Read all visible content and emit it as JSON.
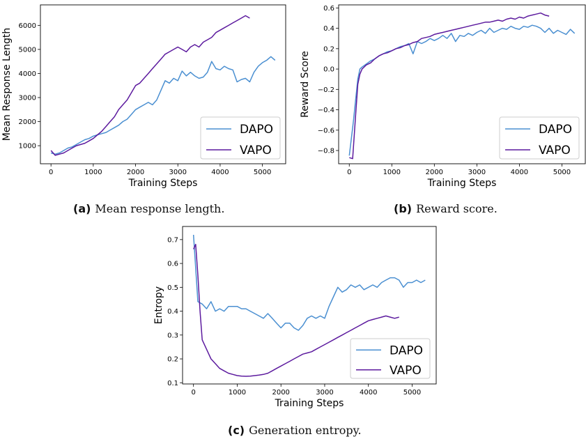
{
  "colors": {
    "dapo": "#4a8fd1",
    "vapo": "#5c1a9e"
  },
  "captions": [
    {
      "label": "(a)",
      "text": "Mean response length."
    },
    {
      "label": "(b)",
      "text": "Reward score."
    },
    {
      "label": "(c)",
      "text": "Generation entropy."
    }
  ],
  "chart_data": [
    {
      "id": "a",
      "type": "line",
      "xlabel": "Training Steps",
      "ylabel": "Mean Response Length",
      "xlim": [
        -250,
        5550
      ],
      "ylim": [
        250,
        6850
      ],
      "xticks": [
        0,
        1000,
        2000,
        3000,
        4000,
        5000
      ],
      "yticks": [
        1000,
        2000,
        3000,
        4000,
        5000,
        6000
      ],
      "legend": {
        "position": "bottom-right",
        "entries": [
          "DAPO",
          "VAPO"
        ]
      },
      "series": [
        {
          "name": "DAPO",
          "x": [
            0,
            100,
            200,
            300,
            400,
            500,
            600,
            700,
            800,
            900,
            1000,
            1100,
            1200,
            1300,
            1400,
            1500,
            1600,
            1700,
            1800,
            1900,
            2000,
            2100,
            2200,
            2300,
            2400,
            2500,
            2600,
            2700,
            2800,
            2900,
            3000,
            3100,
            3200,
            3300,
            3400,
            3500,
            3600,
            3700,
            3800,
            3900,
            4000,
            4100,
            4200,
            4300,
            4400,
            4500,
            4600,
            4700,
            4800,
            4900,
            5000,
            5100,
            5200,
            5300
          ],
          "y": [
            700,
            650,
            700,
            800,
            900,
            950,
            1050,
            1150,
            1250,
            1300,
            1400,
            1450,
            1500,
            1550,
            1650,
            1750,
            1850,
            2000,
            2100,
            2300,
            2500,
            2600,
            2700,
            2800,
            2700,
            2900,
            3300,
            3700,
            3600,
            3800,
            3700,
            4100,
            3900,
            4050,
            3900,
            3800,
            3850,
            4050,
            4500,
            4200,
            4150,
            4300,
            4200,
            4150,
            3650,
            3750,
            3800,
            3650,
            4050,
            4300,
            4450,
            4550,
            4700,
            4550
          ]
        },
        {
          "name": "VAPO",
          "x": [
            0,
            100,
            200,
            300,
            400,
            500,
            600,
            700,
            800,
            900,
            1000,
            1100,
            1200,
            1300,
            1400,
            1500,
            1600,
            1700,
            1800,
            1900,
            2000,
            2100,
            2200,
            2300,
            2400,
            2500,
            2600,
            2700,
            2800,
            2900,
            3000,
            3100,
            3200,
            3300,
            3400,
            3500,
            3600,
            3700,
            3800,
            3900,
            4000,
            4100,
            4200,
            4300,
            4400,
            4500,
            4600,
            4700
          ],
          "y": [
            800,
            600,
            650,
            700,
            800,
            900,
            1000,
            1050,
            1100,
            1200,
            1300,
            1450,
            1600,
            1800,
            2000,
            2200,
            2500,
            2700,
            2900,
            3200,
            3500,
            3600,
            3800,
            4000,
            4200,
            4400,
            4600,
            4800,
            4900,
            5000,
            5100,
            5000,
            4900,
            5100,
            5200,
            5100,
            5300,
            5400,
            5500,
            5700,
            5800,
            5900,
            6000,
            6100,
            6200,
            6300,
            6400,
            6300
          ]
        }
      ]
    },
    {
      "id": "b",
      "type": "line",
      "xlabel": "Training Steps",
      "ylabel": "Reward Score",
      "xlim": [
        -250,
        5550
      ],
      "ylim": [
        -0.93,
        0.63
      ],
      "xticks": [
        0,
        1000,
        2000,
        3000,
        4000,
        5000
      ],
      "yticks": [
        -0.8,
        -0.6,
        -0.4,
        -0.2,
        0.0,
        0.2,
        0.4,
        0.6
      ],
      "legend": {
        "position": "bottom-right",
        "entries": [
          "DAPO",
          "VAPO"
        ]
      },
      "series": [
        {
          "name": "DAPO",
          "x": [
            0,
            100,
            150,
            200,
            250,
            300,
            400,
            500,
            600,
            700,
            800,
            900,
            1000,
            1100,
            1200,
            1300,
            1400,
            1500,
            1600,
            1700,
            1800,
            1900,
            2000,
            2100,
            2200,
            2300,
            2400,
            2500,
            2600,
            2700,
            2800,
            2900,
            3000,
            3100,
            3200,
            3300,
            3400,
            3500,
            3600,
            3700,
            3800,
            3900,
            4000,
            4100,
            4200,
            4300,
            4400,
            4500,
            4600,
            4700,
            4800,
            4900,
            5000,
            5100,
            5200,
            5300
          ],
          "y": [
            -0.85,
            -0.5,
            -0.3,
            -0.1,
            0.0,
            0.02,
            0.05,
            0.08,
            0.1,
            0.13,
            0.15,
            0.17,
            0.18,
            0.2,
            0.22,
            0.23,
            0.25,
            0.15,
            0.27,
            0.25,
            0.27,
            0.3,
            0.28,
            0.3,
            0.33,
            0.3,
            0.35,
            0.27,
            0.33,
            0.32,
            0.35,
            0.33,
            0.36,
            0.38,
            0.35,
            0.4,
            0.36,
            0.38,
            0.4,
            0.39,
            0.42,
            0.4,
            0.39,
            0.42,
            0.41,
            0.43,
            0.42,
            0.4,
            0.36,
            0.4,
            0.35,
            0.38,
            0.36,
            0.34,
            0.39,
            0.35
          ]
        },
        {
          "name": "VAPO",
          "x": [
            0,
            80,
            150,
            200,
            250,
            300,
            400,
            500,
            600,
            700,
            800,
            900,
            1000,
            1100,
            1200,
            1300,
            1400,
            1500,
            1600,
            1700,
            1800,
            1900,
            2000,
            2100,
            2200,
            2300,
            2400,
            2500,
            2600,
            2700,
            2800,
            2900,
            3000,
            3100,
            3200,
            3300,
            3400,
            3500,
            3600,
            3700,
            3800,
            3900,
            4000,
            4100,
            4200,
            4300,
            4400,
            4500,
            4600,
            4700
          ],
          "y": [
            -0.87,
            -0.88,
            -0.45,
            -0.15,
            -0.05,
            0.0,
            0.04,
            0.06,
            0.1,
            0.13,
            0.15,
            0.16,
            0.18,
            0.2,
            0.21,
            0.23,
            0.24,
            0.26,
            0.27,
            0.3,
            0.31,
            0.32,
            0.34,
            0.35,
            0.36,
            0.37,
            0.38,
            0.39,
            0.4,
            0.41,
            0.42,
            0.43,
            0.44,
            0.45,
            0.46,
            0.46,
            0.47,
            0.48,
            0.47,
            0.49,
            0.5,
            0.49,
            0.51,
            0.5,
            0.52,
            0.53,
            0.54,
            0.55,
            0.53,
            0.52
          ]
        }
      ]
    },
    {
      "id": "c",
      "type": "line",
      "xlabel": "Training Steps",
      "ylabel": "Entropy",
      "xlim": [
        -250,
        5550
      ],
      "ylim": [
        0.095,
        0.755
      ],
      "xticks": [
        0,
        1000,
        2000,
        3000,
        4000,
        5000
      ],
      "yticks": [
        0.1,
        0.2,
        0.3,
        0.4,
        0.5,
        0.6,
        0.7
      ],
      "legend": {
        "position": "bottom-right",
        "entries": [
          "DAPO",
          "VAPO"
        ]
      },
      "series": [
        {
          "name": "DAPO",
          "x": [
            0,
            100,
            200,
            300,
            400,
            500,
            600,
            700,
            800,
            900,
            1000,
            1100,
            1200,
            1300,
            1400,
            1500,
            1600,
            1700,
            1800,
            1900,
            2000,
            2100,
            2200,
            2300,
            2400,
            2500,
            2600,
            2700,
            2800,
            2900,
            3000,
            3100,
            3200,
            3300,
            3400,
            3500,
            3600,
            3700,
            3800,
            3900,
            4000,
            4100,
            4200,
            4300,
            4400,
            4500,
            4600,
            4700,
            4800,
            4900,
            5000,
            5100,
            5200,
            5300
          ],
          "y": [
            0.72,
            0.44,
            0.43,
            0.41,
            0.44,
            0.4,
            0.41,
            0.4,
            0.42,
            0.42,
            0.42,
            0.41,
            0.41,
            0.4,
            0.39,
            0.38,
            0.37,
            0.39,
            0.37,
            0.35,
            0.33,
            0.35,
            0.35,
            0.33,
            0.32,
            0.34,
            0.37,
            0.38,
            0.37,
            0.38,
            0.37,
            0.42,
            0.46,
            0.5,
            0.48,
            0.49,
            0.51,
            0.5,
            0.51,
            0.49,
            0.5,
            0.51,
            0.5,
            0.52,
            0.53,
            0.54,
            0.54,
            0.53,
            0.5,
            0.52,
            0.52,
            0.53,
            0.52,
            0.53
          ]
        },
        {
          "name": "VAPO",
          "x": [
            0,
            50,
            100,
            150,
            200,
            300,
            400,
            500,
            600,
            700,
            800,
            900,
            1000,
            1100,
            1200,
            1300,
            1400,
            1500,
            1600,
            1700,
            1800,
            1900,
            2000,
            2100,
            2200,
            2300,
            2400,
            2500,
            2600,
            2700,
            2800,
            2900,
            3000,
            3100,
            3200,
            3300,
            3400,
            3500,
            3600,
            3700,
            3800,
            3900,
            4000,
            4100,
            4200,
            4300,
            4400,
            4500,
            4600,
            4700
          ],
          "y": [
            0.66,
            0.68,
            0.55,
            0.4,
            0.28,
            0.24,
            0.2,
            0.18,
            0.16,
            0.15,
            0.14,
            0.135,
            0.13,
            0.128,
            0.127,
            0.128,
            0.13,
            0.132,
            0.135,
            0.14,
            0.15,
            0.16,
            0.17,
            0.18,
            0.19,
            0.2,
            0.21,
            0.22,
            0.225,
            0.23,
            0.24,
            0.25,
            0.26,
            0.27,
            0.28,
            0.29,
            0.3,
            0.31,
            0.32,
            0.33,
            0.34,
            0.35,
            0.36,
            0.365,
            0.37,
            0.375,
            0.38,
            0.375,
            0.37,
            0.375
          ]
        }
      ]
    }
  ]
}
